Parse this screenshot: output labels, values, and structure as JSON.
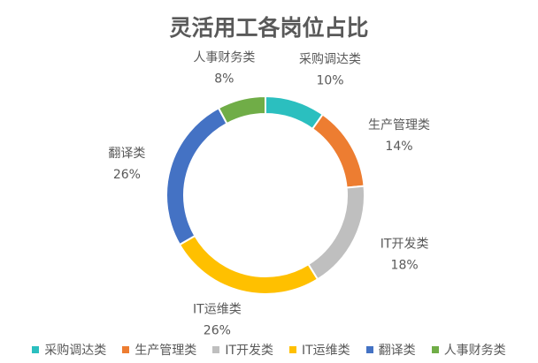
{
  "chart_data": {
    "type": "pie",
    "title": "灵活用工各岗位占比",
    "categories": [
      "采购调达类",
      "生产管理类",
      "IT开发类",
      "IT运维类",
      "翻译类",
      "人事财务类"
    ],
    "values": [
      10,
      14,
      18,
      26,
      26,
      8
    ],
    "value_labels": [
      "10%",
      "14%",
      "18%",
      "26%",
      "26%",
      "8%"
    ],
    "colors": [
      "#2BBFBF",
      "#ED7D31",
      "#BFBFBF",
      "#FFC000",
      "#4472C4",
      "#70AD47"
    ],
    "legend": "bottom"
  }
}
